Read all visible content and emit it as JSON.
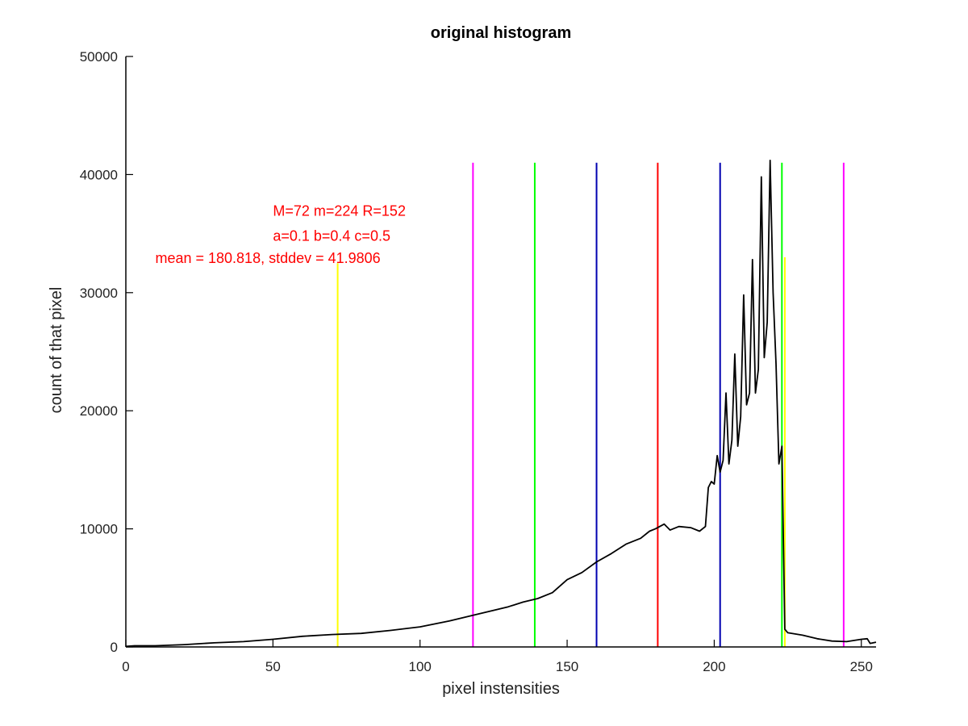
{
  "chart_data": {
    "type": "line",
    "title": "original histogram",
    "xlabel": "pixel instensities",
    "ylabel": "count of that pixel",
    "xlim": [
      0,
      255
    ],
    "ylim": [
      0,
      50000
    ],
    "grid": false,
    "xticks": [
      0,
      50,
      100,
      150,
      200,
      250
    ],
    "yticks": [
      0,
      10000,
      20000,
      30000,
      40000,
      50000
    ],
    "series": [
      {
        "color": "#000000",
        "points": [
          [
            0,
            50
          ],
          [
            3,
            100
          ],
          [
            10,
            100
          ],
          [
            20,
            200
          ],
          [
            30,
            350
          ],
          [
            40,
            450
          ],
          [
            50,
            650
          ],
          [
            60,
            900
          ],
          [
            70,
            1050
          ],
          [
            80,
            1150
          ],
          [
            90,
            1400
          ],
          [
            100,
            1700
          ],
          [
            110,
            2200
          ],
          [
            115,
            2500
          ],
          [
            120,
            2800
          ],
          [
            125,
            3100
          ],
          [
            130,
            3400
          ],
          [
            135,
            3800
          ],
          [
            140,
            4100
          ],
          [
            145,
            4600
          ],
          [
            150,
            5700
          ],
          [
            155,
            6300
          ],
          [
            160,
            7200
          ],
          [
            165,
            7900
          ],
          [
            170,
            8700
          ],
          [
            175,
            9200
          ],
          [
            178,
            9800
          ],
          [
            180,
            10000
          ],
          [
            183,
            10400
          ],
          [
            185,
            9900
          ],
          [
            188,
            10200
          ],
          [
            192,
            10100
          ],
          [
            195,
            9800
          ],
          [
            197,
            10200
          ],
          [
            198,
            13500
          ],
          [
            199,
            14000
          ],
          [
            200,
            13800
          ],
          [
            201,
            16200
          ],
          [
            202,
            14800
          ],
          [
            203,
            15800
          ],
          [
            204,
            21500
          ],
          [
            205,
            15500
          ],
          [
            206,
            17500
          ],
          [
            207,
            24800
          ],
          [
            208,
            17000
          ],
          [
            209,
            19500
          ],
          [
            210,
            29800
          ],
          [
            211,
            20500
          ],
          [
            212,
            21500
          ],
          [
            213,
            32800
          ],
          [
            214,
            21500
          ],
          [
            215,
            23500
          ],
          [
            216,
            39800
          ],
          [
            217,
            24500
          ],
          [
            218,
            27500
          ],
          [
            219,
            41200
          ],
          [
            220,
            30000
          ],
          [
            221,
            24000
          ],
          [
            222,
            15500
          ],
          [
            223,
            17000
          ],
          [
            224,
            1500
          ],
          [
            225,
            1200
          ],
          [
            230,
            1000
          ],
          [
            235,
            700
          ],
          [
            240,
            500
          ],
          [
            245,
            450
          ],
          [
            250,
            650
          ],
          [
            252,
            700
          ],
          [
            253,
            300
          ],
          [
            255,
            400
          ]
        ]
      }
    ],
    "vlines": [
      {
        "x": 72,
        "ymax": 32500,
        "color": "#ffff00"
      },
      {
        "x": 118,
        "ymax": 41000,
        "color": "#ff00ff"
      },
      {
        "x": 139,
        "ymax": 41000,
        "color": "#00ff00"
      },
      {
        "x": 160,
        "ymax": 41000,
        "color": "#0000b0"
      },
      {
        "x": 180.8,
        "ymax": 41000,
        "color": "#ff0000"
      },
      {
        "x": 202,
        "ymax": 41000,
        "color": "#0000b0"
      },
      {
        "x": 223,
        "ymax": 41000,
        "color": "#00ff00"
      },
      {
        "x": 224,
        "ymax": 33000,
        "color": "#ffff00"
      },
      {
        "x": 244,
        "ymax": 41000,
        "color": "#ff00ff"
      }
    ],
    "annotations": [
      {
        "text": "M=72 m=224 R=152",
        "x": 50,
        "y": 36500,
        "color": "#ff0000"
      },
      {
        "text": "a=0.1 b=0.4 c=0.5",
        "x": 50,
        "y": 34400,
        "color": "#ff0000"
      },
      {
        "text": "mean = 180.818, stddev = 41.9806",
        "x": 10,
        "y": 32500,
        "color": "#ff0000"
      }
    ]
  }
}
